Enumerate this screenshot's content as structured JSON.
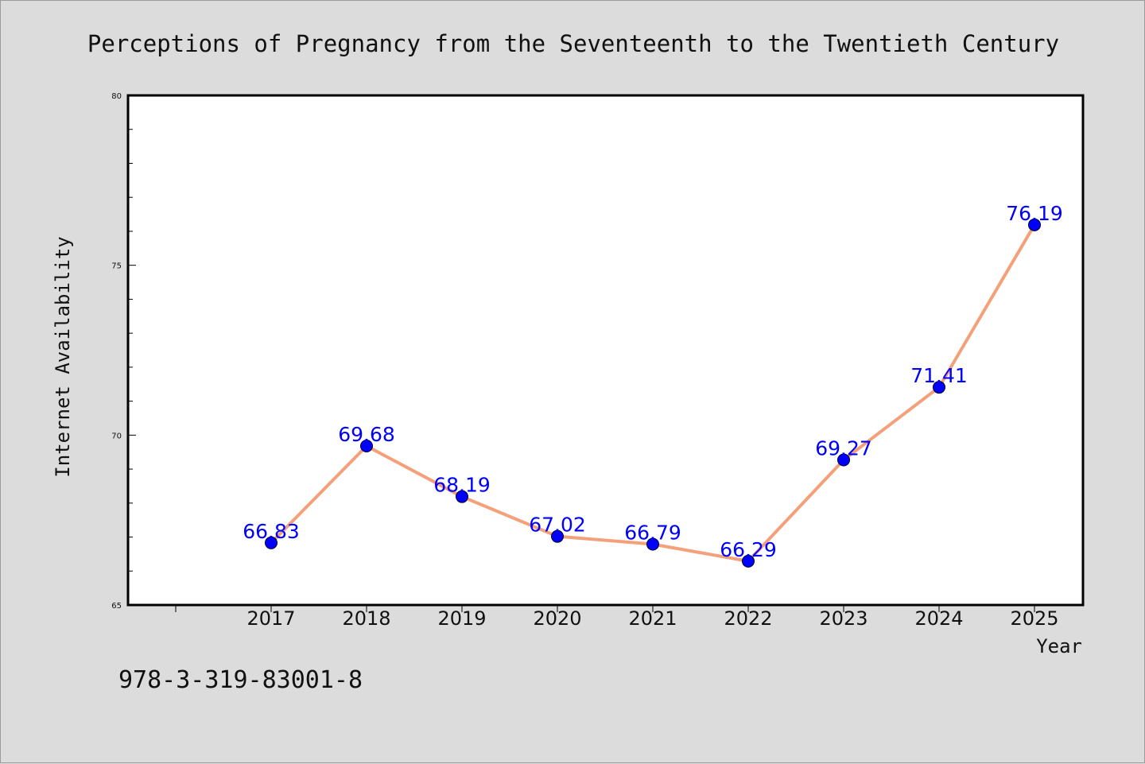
{
  "chart_data": {
    "type": "line",
    "title": "Perceptions of Pregnancy from the Seventeenth to the Twentieth Century",
    "xlabel": "Year",
    "ylabel": "Internet Availability",
    "categories": [
      "2017",
      "2018",
      "2019",
      "2020",
      "2021",
      "2022",
      "2023",
      "2024",
      "2025"
    ],
    "series": [
      {
        "values": [
          66.83,
          69.68,
          68.19,
          67.02,
          66.79,
          66.29,
          69.27,
          71.41,
          76.19
        ],
        "data_labels": [
          "66.83",
          "69.68",
          "68.19",
          "67.02",
          "66.79",
          "66.29",
          "69.27",
          "71.41",
          "76.19"
        ],
        "line_color": "#f4a07a",
        "marker_color": "#0000ff"
      }
    ],
    "ylim": [
      65,
      80
    ],
    "yticks": [
      "65",
      "70",
      "75",
      "80"
    ],
    "grid": false,
    "legend": "none"
  },
  "footer": {
    "isbn": "978-3-319-83001-8"
  },
  "colors": {
    "background": "#dcdcdc",
    "plot_area": "#ffffff",
    "line": "#f4a07a",
    "marker": "#0000ff",
    "data_label": "#0000ff"
  }
}
